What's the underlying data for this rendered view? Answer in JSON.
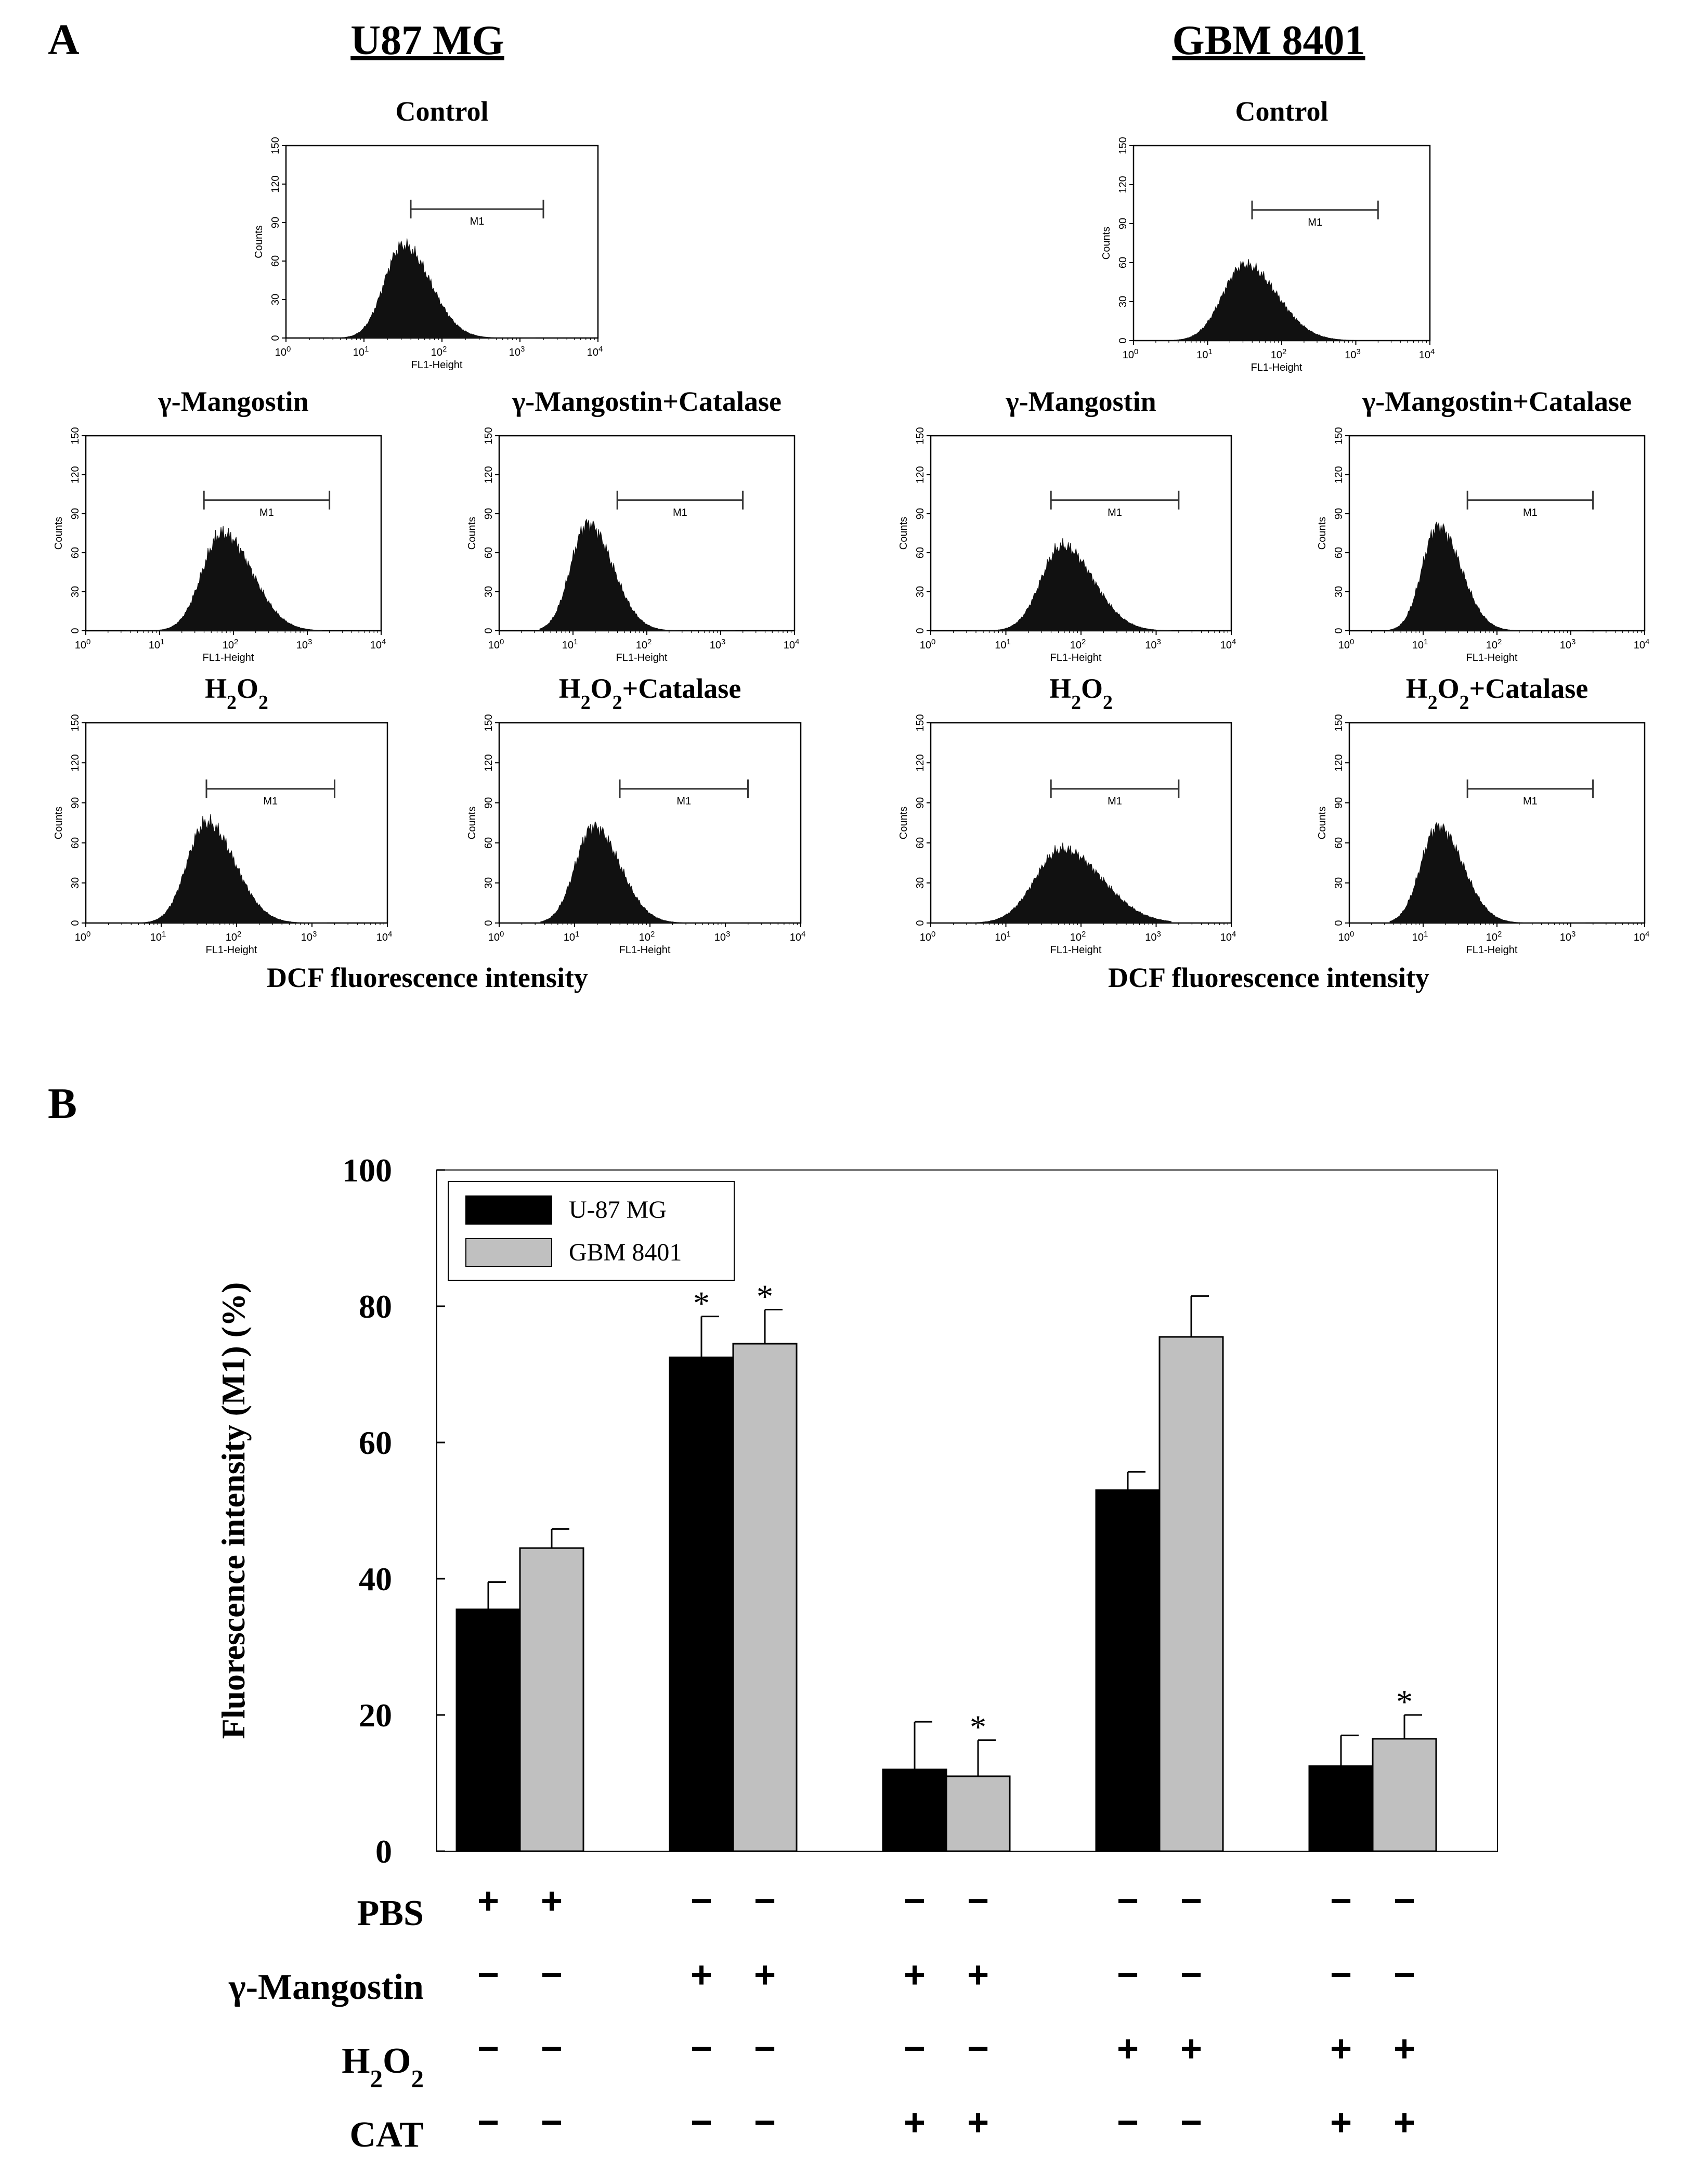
{
  "panel_a": {
    "letter": "A",
    "cell_lines": [
      {
        "title": "U87 MG",
        "x_caption": "DCF fluorescence intensity",
        "histograms": [
          {
            "title": "Control",
            "peak_log": 1.5,
            "width": 0.28,
            "height": 72
          },
          {
            "title": "γ-Mangostin",
            "peak_log": 1.85,
            "width": 0.32,
            "height": 75
          },
          {
            "title": "γ-Mangostin+Catalase",
            "peak_log": 1.2,
            "width": 0.27,
            "height": 82
          },
          {
            "title": "H2O2",
            "peak_log": 1.6,
            "width": 0.3,
            "height": 75
          },
          {
            "title": "H2O2+Catalase",
            "peak_log": 1.25,
            "width": 0.28,
            "height": 72
          }
        ]
      },
      {
        "title": "GBM 8401",
        "x_caption": "DCF fluorescence intensity",
        "histograms": [
          {
            "title": "Control",
            "peak_log": 1.5,
            "width": 0.35,
            "height": 58
          },
          {
            "title": "γ-Mangostin",
            "peak_log": 1.75,
            "width": 0.33,
            "height": 65
          },
          {
            "title": "γ-Mangostin+Catalase",
            "peak_log": 1.2,
            "width": 0.25,
            "height": 80
          },
          {
            "title": "H2O2",
            "peak_log": 1.75,
            "width": 0.42,
            "height": 55
          },
          {
            "title": "H2O2+Catalase",
            "peak_log": 1.2,
            "width": 0.27,
            "height": 72
          }
        ]
      }
    ],
    "hist_axis": {
      "ylabel": "Counts",
      "xlabel": "FL1-Height",
      "yticks": [
        "0",
        "30",
        "60",
        "90",
        "120",
        "150"
      ],
      "ylim": [
        0,
        150
      ],
      "xticks_exp": [
        "0",
        "1",
        "2",
        "3",
        "4"
      ],
      "xtick_base": "10",
      "gate_label": "M1",
      "gate_range_log": [
        1.6,
        3.3
      ]
    }
  },
  "panel_b": {
    "letter": "B",
    "chart_data": {
      "type": "bar",
      "ylabel": "Fluorescence intensity (M1) (%)",
      "ylim": [
        0,
        100
      ],
      "yticks": [
        "0",
        "20",
        "40",
        "60",
        "80",
        "100"
      ],
      "legend_position": "top-left",
      "groups": 5,
      "series": [
        {
          "name": "U-87 MG",
          "color": "#000000",
          "values": [
            35.5,
            72.5,
            12,
            53,
            12.5
          ],
          "errors": [
            4,
            6,
            7,
            2.7,
            4.5
          ],
          "significant": [
            false,
            true,
            false,
            false,
            false
          ]
        },
        {
          "name": "GBM 8401",
          "color": "#c0c0c0",
          "values": [
            44.5,
            74.5,
            11,
            75.5,
            16.5
          ],
          "errors": [
            2.8,
            5,
            5.3,
            6,
            3.5
          ],
          "significant": [
            false,
            true,
            true,
            false,
            true
          ]
        }
      ],
      "significance_mark": "*",
      "treatments": [
        {
          "label": "PBS",
          "symbols": [
            "+",
            "−",
            "−",
            "−",
            "−"
          ]
        },
        {
          "label": "γ-Mangostin",
          "symbols": [
            "−",
            "+",
            "+",
            "−",
            "−"
          ]
        },
        {
          "label": "H2O2",
          "symbols": [
            "−",
            "−",
            "−",
            "+",
            "+"
          ]
        },
        {
          "label": "CAT",
          "symbols": [
            "−",
            "−",
            "+",
            "−",
            "+"
          ]
        }
      ]
    }
  }
}
